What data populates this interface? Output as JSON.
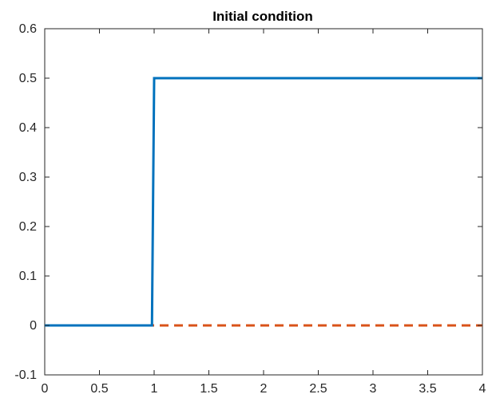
{
  "chart_data": {
    "type": "line",
    "title": "Initial condition",
    "xlabel": "",
    "ylabel": "",
    "xlim": [
      0,
      4
    ],
    "ylim": [
      -0.1,
      0.6
    ],
    "xticks": [
      0,
      0.5,
      1,
      1.5,
      2,
      2.5,
      3,
      3.5,
      4
    ],
    "xtick_labels": [
      "0",
      "0.5",
      "1",
      "1.5",
      "2",
      "2.5",
      "3",
      "3.5",
      "4"
    ],
    "yticks": [
      -0.1,
      0,
      0.1,
      0.2,
      0.3,
      0.4,
      0.5,
      0.6
    ],
    "ytick_labels": [
      "-0.1",
      "0",
      "0.1",
      "0.2",
      "0.3",
      "0.4",
      "0.5",
      "0.6"
    ],
    "grid": false,
    "series": [
      {
        "style": "solid",
        "color": "#0072BD",
        "x": [
          0,
          0.98,
          1.0,
          4
        ],
        "y": [
          0,
          0,
          0.5,
          0.5
        ]
      },
      {
        "style": "dashed",
        "color": "#D95319",
        "x": [
          0,
          4
        ],
        "y": [
          0,
          0
        ]
      }
    ]
  }
}
